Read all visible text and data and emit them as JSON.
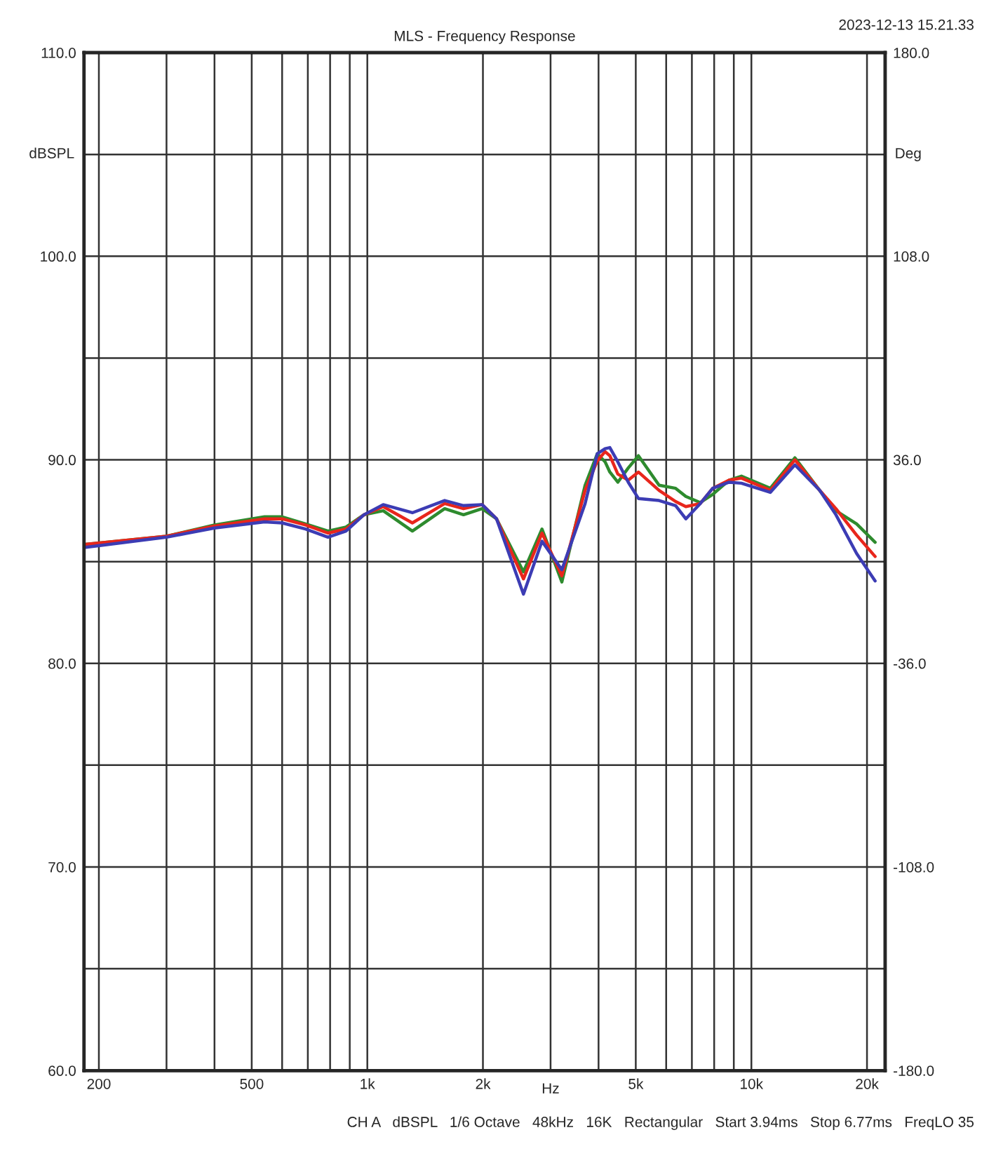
{
  "chart_data": {
    "type": "line",
    "title": "MLS - Frequency Response",
    "xlabel": "Hz",
    "ylabel": "dBSPL",
    "y2label": "Deg",
    "annotations": [
      "2023-12-13 15.21.33",
      "CH A   dBSPL   1/6 Octave   48kHz   16K   Rectangular   Start 3.94ms   Stop 6.77ms   FreqLO 35"
    ],
    "x": [
      185,
      300,
      400,
      540,
      600,
      690,
      790,
      880,
      980,
      1100,
      1310,
      1590,
      1780,
      1990,
      2170,
      2550,
      2850,
      3210,
      3690,
      3970,
      4160,
      4280,
      4490,
      4780,
      5080,
      5750,
      6350,
      6750,
      7360,
      7930,
      8750,
      9420,
      11200,
      12980,
      15060,
      16600,
      18790,
      21000
    ],
    "series": [
      {
        "color": "#2e8b2e",
        "values": [
          85.85,
          86.25,
          86.8,
          87.2,
          87.2,
          86.85,
          86.5,
          86.7,
          87.3,
          87.5,
          86.5,
          87.6,
          87.3,
          87.6,
          87.1,
          84.5,
          86.6,
          84.0,
          88.75,
          90.3,
          89.9,
          89.4,
          88.9,
          89.6,
          90.2,
          88.75,
          88.6,
          88.2,
          87.9,
          88.3,
          89.0,
          89.2,
          88.6,
          90.1,
          88.5,
          87.5,
          86.85,
          85.95
        ]
      },
      {
        "color": "#e8261c",
        "values": [
          85.85,
          86.25,
          86.75,
          87.1,
          87.1,
          86.8,
          86.4,
          86.6,
          87.3,
          87.7,
          86.9,
          87.85,
          87.6,
          87.8,
          87.1,
          84.15,
          86.4,
          84.3,
          88.5,
          89.95,
          90.4,
          90.2,
          89.3,
          89.0,
          89.4,
          88.5,
          87.95,
          87.7,
          87.85,
          88.6,
          89.0,
          89.1,
          88.5,
          90.0,
          88.5,
          87.6,
          86.3,
          85.25
        ]
      },
      {
        "color": "#3c3cb4",
        "values": [
          85.7,
          86.2,
          86.65,
          86.95,
          86.9,
          86.6,
          86.2,
          86.5,
          87.3,
          87.8,
          87.4,
          88.0,
          87.75,
          87.8,
          87.1,
          83.4,
          86.0,
          84.6,
          87.85,
          90.3,
          90.55,
          90.6,
          89.9,
          88.9,
          88.1,
          88.0,
          87.75,
          87.1,
          87.85,
          88.6,
          88.9,
          88.85,
          88.4,
          89.75,
          88.5,
          87.3,
          85.4,
          84.05
        ]
      }
    ],
    "log": "x",
    "xlim": [
      183,
      22300
    ],
    "xticks": [
      {
        "value": 200,
        "label": "200"
      },
      {
        "value": 300,
        "label": null
      },
      {
        "value": 400,
        "label": null
      },
      {
        "value": 500,
        "label": "500"
      },
      {
        "value": 600,
        "label": null
      },
      {
        "value": 700,
        "label": null
      },
      {
        "value": 800,
        "label": null
      },
      {
        "value": 900,
        "label": null
      },
      {
        "value": 1000,
        "label": "1k"
      },
      {
        "value": 2000,
        "label": "2k"
      },
      {
        "value": 3000,
        "label": null
      },
      {
        "value": 4000,
        "label": null
      },
      {
        "value": 5000,
        "label": "5k"
      },
      {
        "value": 6000,
        "label": null
      },
      {
        "value": 7000,
        "label": null
      },
      {
        "value": 8000,
        "label": null
      },
      {
        "value": 9000,
        "label": null
      },
      {
        "value": 10000,
        "label": "10k"
      },
      {
        "value": 20000,
        "label": "20k"
      }
    ],
    "ylim": [
      60,
      110
    ],
    "yticks": [
      {
        "value": 60,
        "label": "60.0"
      },
      {
        "value": 65,
        "label": null
      },
      {
        "value": 70,
        "label": "70.0"
      },
      {
        "value": 75,
        "label": null
      },
      {
        "value": 80,
        "label": "80.0"
      },
      {
        "value": 85,
        "label": null
      },
      {
        "value": 90,
        "label": "90.0"
      },
      {
        "value": 95,
        "label": null
      },
      {
        "value": 100,
        "label": "100.0"
      },
      {
        "value": 105,
        "label": null
      },
      {
        "value": 110,
        "label": "110.0"
      }
    ],
    "y2lim": [
      -180,
      180
    ],
    "y2ticks": [
      {
        "value": -180,
        "label": "-180.0"
      },
      {
        "value": -108,
        "label": "-108.0"
      },
      {
        "value": -36,
        "label": "-36.0"
      },
      {
        "value": 36,
        "label": "36.0"
      },
      {
        "value": 108,
        "label": "108.0"
      },
      {
        "value": 180,
        "label": "180.0"
      }
    ],
    "grid": true,
    "line_style": "solid",
    "marker": "none",
    "legend": false
  }
}
